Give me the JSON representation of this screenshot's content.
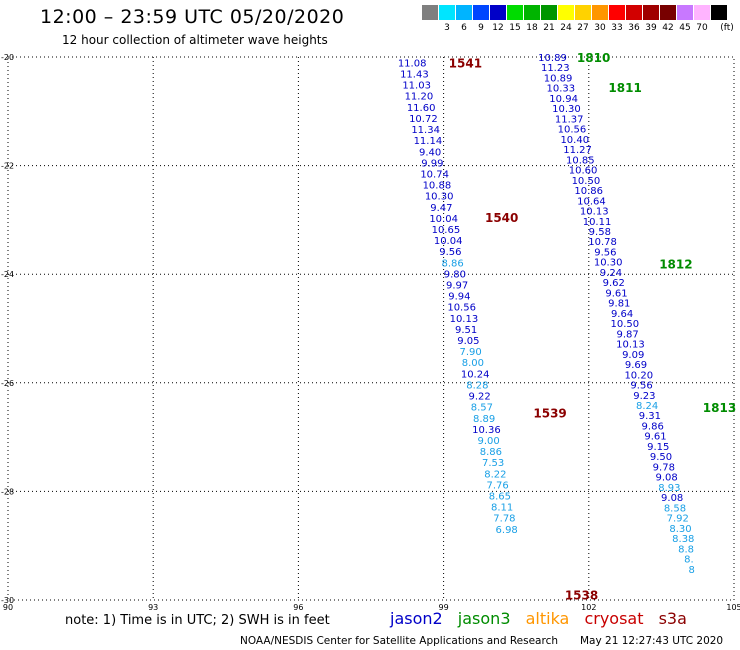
{
  "title": "12:00 – 23:59 UTC 05/20/2020",
  "subtitle": "12 hour collection of altimeter wave heights",
  "legend": {
    "unit": "(ft)",
    "bins": [
      {
        "label": "",
        "color": "#7f7f7f"
      },
      {
        "label": "3",
        "color": "#00e5ff"
      },
      {
        "label": "6",
        "color": "#00b4ff"
      },
      {
        "label": "9",
        "color": "#0046ff"
      },
      {
        "label": "12",
        "color": "#0000c8"
      },
      {
        "label": "15",
        "color": "#00dc00"
      },
      {
        "label": "18",
        "color": "#00b400"
      },
      {
        "label": "21",
        "color": "#009600"
      },
      {
        "label": "24",
        "color": "#ffff00"
      },
      {
        "label": "27",
        "color": "#ffd200"
      },
      {
        "label": "30",
        "color": "#ff9600"
      },
      {
        "label": "33",
        "color": "#ff0000"
      },
      {
        "label": "36",
        "color": "#d20000"
      },
      {
        "label": "39",
        "color": "#a00000"
      },
      {
        "label": "42",
        "color": "#780000"
      },
      {
        "label": "45",
        "color": "#c878ff"
      },
      {
        "label": "70",
        "color": "#ffb4ff"
      },
      {
        "label": "",
        "color": "#000000"
      }
    ]
  },
  "map": {
    "lon_range": [
      90,
      105
    ],
    "lat_range": [
      -30,
      -20
    ],
    "lon_ticks": [
      "90",
      "93",
      "96",
      "99",
      "102",
      "105"
    ],
    "lat_ticks": [
      "-20",
      "-22",
      "-24",
      "-26",
      "-28",
      "-30"
    ]
  },
  "passes": [
    {
      "label": "1541",
      "lon": 99.45,
      "lat": -20.1,
      "color": "#8b0000"
    },
    {
      "label": "1540",
      "lon": 100.2,
      "lat": -22.95,
      "color": "#8b0000"
    },
    {
      "label": "1539",
      "lon": 101.2,
      "lat": -26.55,
      "color": "#8b0000"
    },
    {
      "label": "1538",
      "lon": 101.85,
      "lat": -29.9,
      "color": "#8b0000"
    },
    {
      "label": "1810",
      "lon": 102.1,
      "lat": -20.0,
      "color": "#008c00"
    },
    {
      "label": "1811",
      "lon": 102.75,
      "lat": -20.55,
      "color": "#008c00"
    },
    {
      "label": "1812",
      "lon": 103.8,
      "lat": -23.8,
      "color": "#008c00"
    },
    {
      "label": "1813",
      "lon": 104.7,
      "lat": -26.45,
      "color": "#008c00"
    }
  ],
  "tracks": [
    {
      "lon_start": 98.35,
      "lat_start": -20.1,
      "lon_step": 0.0465,
      "lat_step": 0.2045,
      "values": [
        {
          "v": "11.08",
          "c": "#0000c8"
        },
        {
          "v": "11.43",
          "c": "#0000c8"
        },
        {
          "v": "11.03",
          "c": "#0000c8"
        },
        {
          "v": "11.20",
          "c": "#0000c8"
        },
        {
          "v": "11.60",
          "c": "#0000c8"
        },
        {
          "v": "10.72",
          "c": "#0000c8"
        },
        {
          "v": "11.34",
          "c": "#0000c8"
        },
        {
          "v": "11.14",
          "c": "#0000c8"
        },
        {
          "v": "9.40",
          "c": "#0000c8"
        },
        {
          "v": "9.99",
          "c": "#0000c8"
        },
        {
          "v": "10.74",
          "c": "#0000c8"
        },
        {
          "v": "10.88",
          "c": "#0000c8"
        },
        {
          "v": "10.30",
          "c": "#0000c8"
        },
        {
          "v": "9.47",
          "c": "#0000c8"
        },
        {
          "v": "10.04",
          "c": "#0000c8"
        },
        {
          "v": "10.65",
          "c": "#0000c8"
        },
        {
          "v": "10.04",
          "c": "#0000c8"
        },
        {
          "v": "9.56",
          "c": "#0000c8"
        },
        {
          "v": "8.86",
          "c": "#1aa0e6"
        },
        {
          "v": "9.80",
          "c": "#0000c8"
        },
        {
          "v": "9.97",
          "c": "#0000c8"
        },
        {
          "v": "9.94",
          "c": "#0000c8"
        },
        {
          "v": "10.56",
          "c": "#0000c8"
        },
        {
          "v": "10.13",
          "c": "#0000c8"
        },
        {
          "v": "9.51",
          "c": "#0000c8"
        },
        {
          "v": "9.05",
          "c": "#0000c8"
        },
        {
          "v": "7.90",
          "c": "#1aa0e6"
        },
        {
          "v": "8.00",
          "c": "#1aa0e6"
        },
        {
          "v": "10.24",
          "c": "#0000c8"
        },
        {
          "v": "8.28",
          "c": "#1aa0e6"
        },
        {
          "v": "9.22",
          "c": "#0000c8"
        },
        {
          "v": "8.57",
          "c": "#1aa0e6"
        },
        {
          "v": "8.89",
          "c": "#1aa0e6"
        },
        {
          "v": "10.36",
          "c": "#0000c8"
        },
        {
          "v": "9.00",
          "c": "#1aa0e6"
        },
        {
          "v": "8.86",
          "c": "#1aa0e6"
        },
        {
          "v": "7.53",
          "c": "#1aa0e6"
        },
        {
          "v": "8.22",
          "c": "#1aa0e6"
        },
        {
          "v": "7.76",
          "c": "#1aa0e6"
        },
        {
          "v": "8.65",
          "c": "#1aa0e6"
        },
        {
          "v": "8.11",
          "c": "#1aa0e6"
        },
        {
          "v": "7.78",
          "c": "#1aa0e6"
        },
        {
          "v": "6.98",
          "c": "#1aa0e6"
        }
      ]
    },
    {
      "lon_start": 101.25,
      "lat_start": -20.0,
      "lon_step": 0.0575,
      "lat_step": 0.1885,
      "values": [
        {
          "v": "10.89",
          "c": "#0000c8"
        },
        {
          "v": "11.23",
          "c": "#0000c8"
        },
        {
          "v": "10.89",
          "c": "#0000c8"
        },
        {
          "v": "10.33",
          "c": "#0000c8"
        },
        {
          "v": "10.94",
          "c": "#0000c8"
        },
        {
          "v": "10.30",
          "c": "#0000c8"
        },
        {
          "v": "11.37",
          "c": "#0000c8"
        },
        {
          "v": "10.56",
          "c": "#0000c8"
        },
        {
          "v": "10.40",
          "c": "#0000c8"
        },
        {
          "v": "11.27",
          "c": "#0000c8"
        },
        {
          "v": "10.85",
          "c": "#0000c8"
        },
        {
          "v": "10.60",
          "c": "#0000c8"
        },
        {
          "v": "10.50",
          "c": "#0000c8"
        },
        {
          "v": "10.86",
          "c": "#0000c8"
        },
        {
          "v": "10.64",
          "c": "#0000c8"
        },
        {
          "v": "10.13",
          "c": "#0000c8"
        },
        {
          "v": "10.11",
          "c": "#0000c8"
        },
        {
          "v": "9.58",
          "c": "#0000c8"
        },
        {
          "v": "10.78",
          "c": "#0000c8"
        },
        {
          "v": "9.56",
          "c": "#0000c8"
        },
        {
          "v": "10.30",
          "c": "#0000c8"
        },
        {
          "v": "9.24",
          "c": "#0000c8"
        },
        {
          "v": "9.62",
          "c": "#0000c8"
        },
        {
          "v": "9.61",
          "c": "#0000c8"
        },
        {
          "v": "9.81",
          "c": "#0000c8"
        },
        {
          "v": "9.64",
          "c": "#0000c8"
        },
        {
          "v": "10.50",
          "c": "#0000c8"
        },
        {
          "v": "9.87",
          "c": "#0000c8"
        },
        {
          "v": "10.13",
          "c": "#0000c8"
        },
        {
          "v": "9.09",
          "c": "#0000c8"
        },
        {
          "v": "9.69",
          "c": "#0000c8"
        },
        {
          "v": "10.20",
          "c": "#0000c8"
        },
        {
          "v": "9.56",
          "c": "#0000c8"
        },
        {
          "v": "9.23",
          "c": "#0000c8"
        },
        {
          "v": "8.24",
          "c": "#1aa0e6"
        },
        {
          "v": "9.31",
          "c": "#0000c8"
        },
        {
          "v": "9.86",
          "c": "#0000c8"
        },
        {
          "v": "9.61",
          "c": "#0000c8"
        },
        {
          "v": "9.15",
          "c": "#0000c8"
        },
        {
          "v": "9.50",
          "c": "#0000c8"
        },
        {
          "v": "9.78",
          "c": "#0000c8"
        },
        {
          "v": "9.08",
          "c": "#0000c8"
        },
        {
          "v": "8.93",
          "c": "#1aa0e6"
        },
        {
          "v": "9.08",
          "c": "#0000c8"
        },
        {
          "v": "8.58",
          "c": "#1aa0e6"
        },
        {
          "v": "7.92",
          "c": "#1aa0e6"
        },
        {
          "v": "8.30",
          "c": "#1aa0e6"
        },
        {
          "v": "8.38",
          "c": "#1aa0e6"
        },
        {
          "v": "8.8",
          "c": "#1aa0e6"
        },
        {
          "v": "8.",
          "c": "#1aa0e6"
        },
        {
          "v": "8",
          "c": "#1aa0e6"
        }
      ]
    }
  ],
  "note": "note:  1) Time is in UTC;  2) SWH is in feet",
  "satellites": [
    {
      "name": "jason2",
      "color": "#0000c8"
    },
    {
      "name": "jason3",
      "color": "#008c00"
    },
    {
      "name": "altika",
      "color": "#ff9600"
    },
    {
      "name": "cryosat",
      "color": "#c80000"
    },
    {
      "name": "s3a",
      "color": "#8b0000"
    }
  ],
  "credit": "NOAA/NESDIS Center for Satellite Applications and Research",
  "timestamp": "May 21 12:27:43 UTC 2020"
}
